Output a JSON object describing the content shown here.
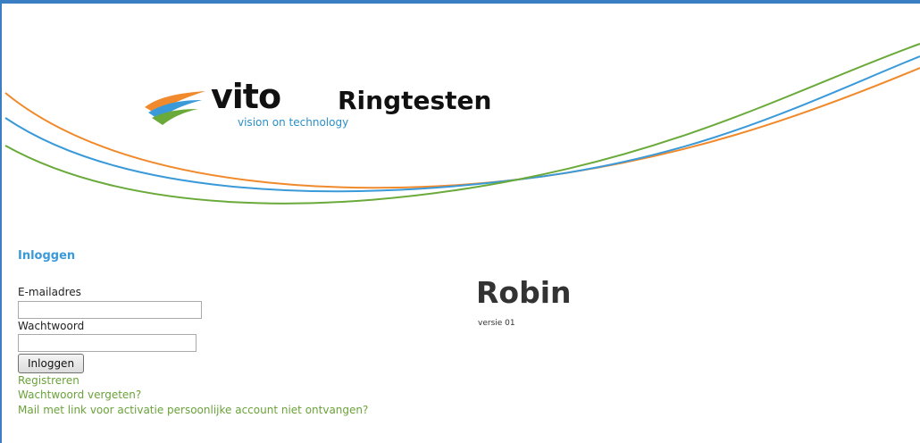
{
  "header": {
    "logo_word": "vito",
    "logo_tagline": "vision on technology",
    "app_title": "Ringtesten"
  },
  "colors": {
    "orange_curve": "#f08a2c",
    "blue_curve": "#3a9ad9",
    "green_curve": "#6aaa3a",
    "frame": "#3a7fc4"
  },
  "login": {
    "heading": "Inloggen",
    "email_label": "E-mailadres",
    "email_value": "",
    "password_label": "Wachtwoord",
    "password_value": "",
    "submit_label": "Inloggen",
    "links": {
      "register": "Registreren",
      "forgot_password": "Wachtwoord vergeten?",
      "activation_mail": "Mail met link voor activatie persoonlijke account niet ontvangen?"
    }
  },
  "product": {
    "name": "Robin",
    "version": "versie 01"
  }
}
